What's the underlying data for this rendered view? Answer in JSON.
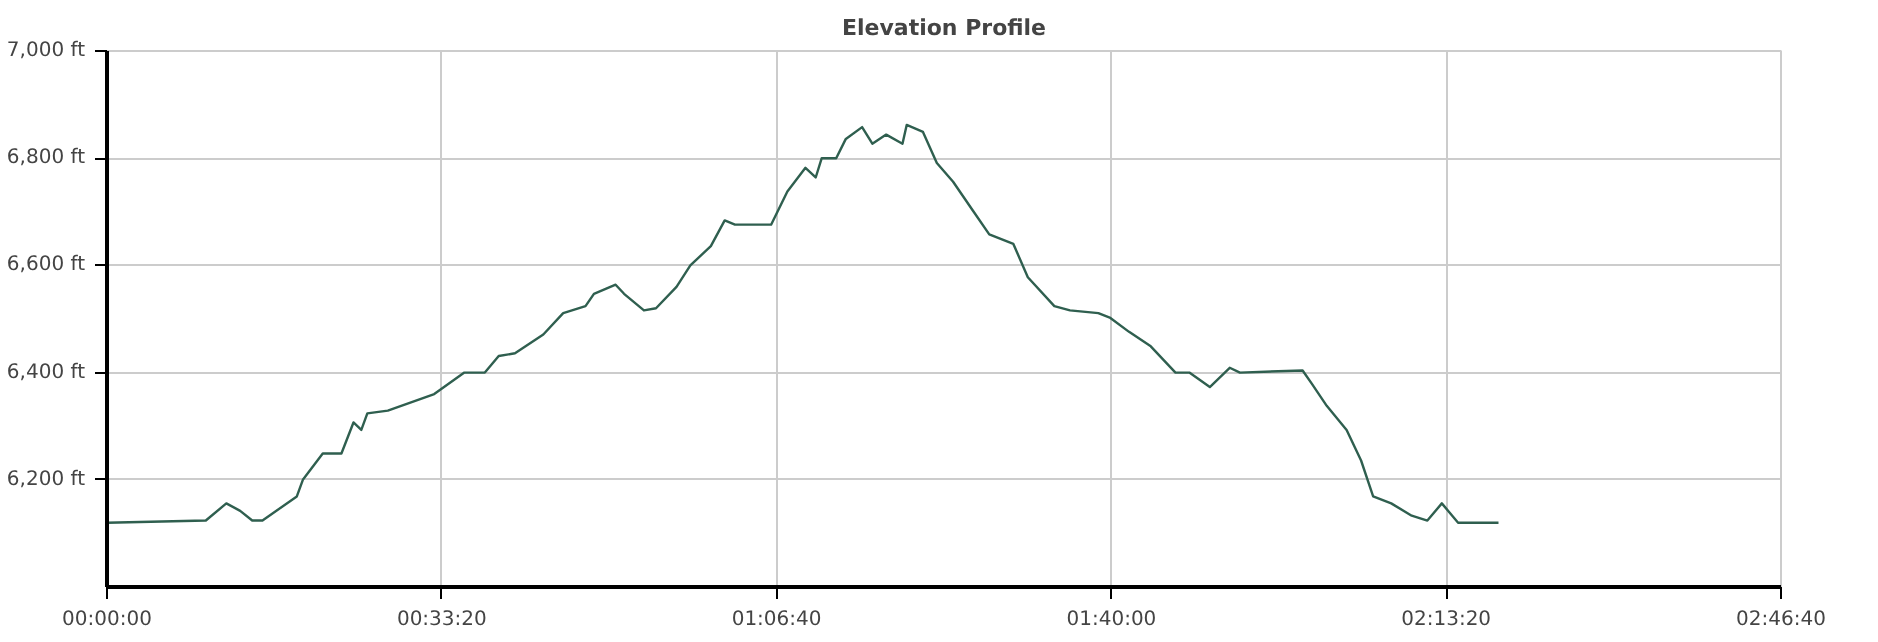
{
  "chart_data": {
    "type": "line",
    "title": "Elevation Profile",
    "x": [
      0,
      0.164,
      0.198,
      0.221,
      0.241,
      0.258,
      0.315,
      0.325,
      0.358,
      0.389,
      0.409,
      0.422,
      0.432,
      0.466,
      0.543,
      0.593,
      0.627,
      0.65,
      0.677,
      0.724,
      0.757,
      0.794,
      0.808,
      0.844,
      0.858,
      0.891,
      0.911,
      0.945,
      0.968,
      1.002,
      1.025,
      1.042,
      1.102,
      1.129,
      1.159,
      1.176,
      1.186,
      1.21,
      1.226,
      1.253,
      1.27,
      1.293,
      1.32,
      1.327,
      1.354,
      1.377,
      1.404,
      1.437,
      1.464,
      1.504,
      1.528,
      1.572,
      1.598,
      1.645,
      1.665,
      1.696,
      1.732,
      1.773,
      1.796,
      1.83,
      1.863,
      1.88,
      1.984,
      2.0,
      2.024,
      2.057,
      2.081,
      2.101,
      2.131,
      2.165,
      2.191,
      2.215,
      2.242,
      2.275,
      2.309
    ],
    "series": [
      {
        "color": "#2f5f4f",
        "values": [
          6120,
          6124,
          6156,
          6142,
          6124,
          6124,
          6169,
          6200,
          6249,
          6249,
          6307,
          6293,
          6324,
          6329,
          6360,
          6400,
          6400,
          6431,
          6436,
          6471,
          6511,
          6524,
          6547,
          6564,
          6547,
          6516,
          6520,
          6560,
          6600,
          6636,
          6684,
          6676,
          6676,
          6738,
          6782,
          6764,
          6800,
          6800,
          6836,
          6858,
          6827,
          6844,
          6827,
          6862,
          6849,
          6791,
          6756,
          6702,
          6658,
          6640,
          6578,
          6524,
          6516,
          6511,
          6502,
          6476,
          6449,
          6400,
          6400,
          6373,
          6409,
          6400,
          6404,
          6378,
          6338,
          6293,
          6236,
          6169,
          6156,
          6133,
          6124,
          6156,
          6120,
          6120,
          6120
        ]
      }
    ],
    "xlim": [
      0,
      2.7778
    ],
    "xticks": [
      {
        "value": 0,
        "label": "00:00:00"
      },
      {
        "value": 0.5556,
        "label": "00:33:20"
      },
      {
        "value": 1.1111,
        "label": "01:06:40"
      },
      {
        "value": 1.6667,
        "label": "01:40:00"
      },
      {
        "value": 2.2222,
        "label": "02:13:20"
      },
      {
        "value": 2.7778,
        "label": "02:46:40"
      }
    ],
    "ylim": [
      6000,
      7000
    ],
    "yticks": [
      {
        "value": 6200,
        "label": "6,200 ft"
      },
      {
        "value": 6400,
        "label": "6,400 ft"
      },
      {
        "value": 6600,
        "label": "6,600 ft"
      },
      {
        "value": 6800,
        "label": "6,800 ft"
      },
      {
        "value": 7000,
        "label": "7,000 ft"
      }
    ],
    "grid": true,
    "marker": "none",
    "line_style": "solid"
  }
}
